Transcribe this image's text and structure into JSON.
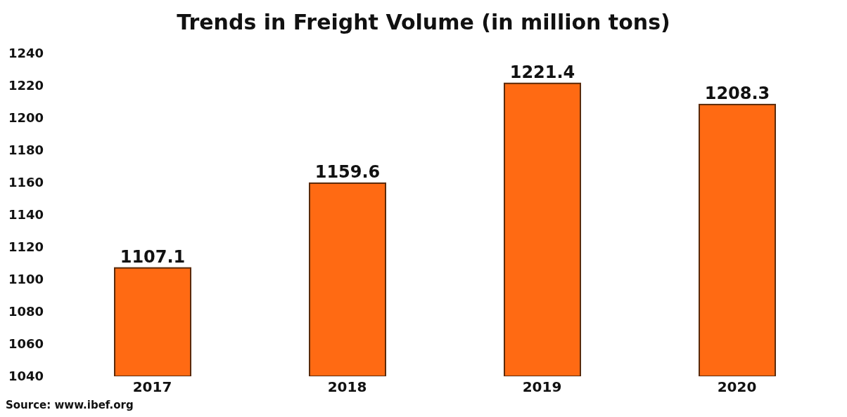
{
  "chart_data": {
    "type": "bar",
    "title": "Trends in Freight Volume (in million tons)",
    "categories": [
      "2017",
      "2018",
      "2019",
      "2020"
    ],
    "values": [
      1107.1,
      1159.6,
      1221.4,
      1208.3
    ],
    "color": "#ff6a13",
    "ylim": [
      1040,
      1240
    ],
    "yticks": [
      1040,
      1060,
      1080,
      1100,
      1120,
      1140,
      1160,
      1180,
      1200,
      1220,
      1240
    ],
    "data_labels": true,
    "grid": false,
    "annotations": [
      "Source: www.ibef.org"
    ]
  }
}
